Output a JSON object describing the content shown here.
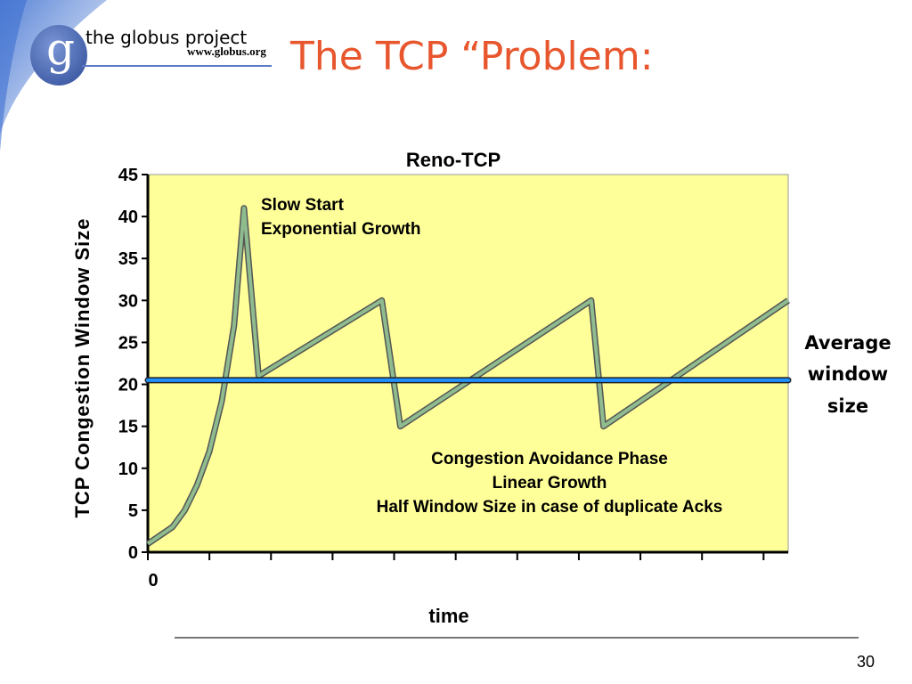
{
  "header": {
    "logo_letter": "g",
    "logo_name": "the globus project",
    "logo_url": "www.globus.org",
    "title": "The TCP “Problem:"
  },
  "footer": {
    "page_number": "30"
  },
  "colors": {
    "title": "#e8562e",
    "plot_bg": "#ffff99",
    "series": "#8fbc8f",
    "average": "#1e90ff",
    "logo_blue": "#4f6fb8"
  },
  "chart_data": {
    "type": "line",
    "title": "Reno-TCP",
    "xlabel": "time",
    "ylabel": "TCP Congestion Window Size",
    "ylim": [
      0,
      45
    ],
    "yticks": [
      0,
      5,
      10,
      15,
      20,
      25,
      30,
      35,
      40,
      45
    ],
    "xlim": [
      0,
      52
    ],
    "xticks": [
      0,
      5,
      10,
      15,
      20,
      25,
      30,
      35,
      40,
      45,
      50
    ],
    "xtick_labels": [
      "0"
    ],
    "grid": false,
    "series": [
      {
        "values": [
          [
            0,
            1
          ],
          [
            2,
            3
          ],
          [
            3,
            5
          ],
          [
            4,
            8
          ],
          [
            5,
            12
          ],
          [
            6,
            18
          ],
          [
            7,
            27
          ],
          [
            7.8,
            41
          ],
          [
            9,
            21
          ],
          [
            19,
            30
          ],
          [
            20.5,
            15
          ],
          [
            36,
            30
          ],
          [
            37,
            15
          ],
          [
            52,
            30
          ]
        ]
      }
    ],
    "average_line": {
      "y": 20.5,
      "label": [
        "Average",
        "window",
        "size"
      ]
    },
    "annotations": [
      {
        "lines": [
          "Slow Start",
          "Exponential Growth"
        ]
      },
      {
        "lines": [
          "Congestion Avoidance Phase",
          "Linear Growth",
          "Half Window Size in case of duplicate Acks"
        ]
      }
    ]
  }
}
